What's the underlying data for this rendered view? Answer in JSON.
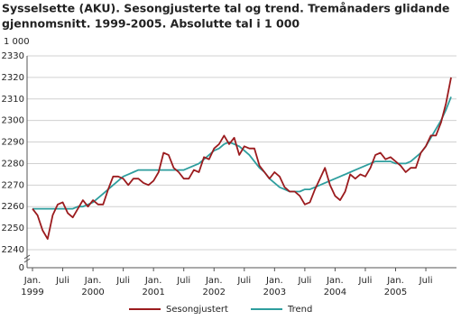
{
  "chart_data": {
    "type": "line",
    "title": [
      "Sysselsette (AKU).  Sesongjusterte tal og trend. Tremånaders glidande",
      "gjennomsnitt. 1999-2005. Absolutte tal i 1 000"
    ],
    "y_unit": "1 000",
    "y_break_label": "0",
    "categories": [
      "Jan.",
      null,
      null,
      null,
      null,
      null,
      "Juli",
      null,
      null,
      null,
      null,
      null,
      "Jan.",
      null,
      null,
      null,
      null,
      null,
      "Juli",
      null,
      null,
      null,
      null,
      null,
      "Jan.",
      null,
      null,
      null,
      null,
      null,
      "Juli",
      null,
      null,
      null,
      null,
      null,
      "Jan.",
      null,
      null,
      null,
      null,
      null,
      "Juli",
      null,
      null,
      null,
      null,
      null,
      "Jan.",
      null,
      null,
      null,
      null,
      null,
      "Juli",
      null,
      null,
      null,
      null,
      null,
      "Jan.",
      null,
      null,
      null,
      null,
      null,
      "Juli",
      null,
      null,
      null,
      null,
      null,
      "Jan.",
      null,
      null,
      null,
      null,
      null,
      "Juli",
      null,
      null,
      null,
      null,
      null
    ],
    "years": [
      "1999",
      "2000",
      "2001",
      "2002",
      "2003",
      "2004",
      "2005"
    ],
    "series": [
      {
        "name": "Sesongjustert",
        "color": "#9b1b1e",
        "values": [
          2259,
          2256,
          2249,
          2245,
          2256,
          2261,
          2262,
          2257,
          2255,
          2259,
          2263,
          2260,
          2263,
          2261,
          2261,
          2268,
          2274,
          2274,
          2273,
          2270,
          2273,
          2273,
          2271,
          2270,
          2272,
          2276,
          2285,
          2284,
          2278,
          2276,
          2273,
          2273,
          2277,
          2276,
          2283,
          2282,
          2287,
          2289,
          2293,
          2289,
          2292,
          2284,
          2288,
          2287,
          2287,
          2279,
          2276,
          2273,
          2276,
          2274,
          2269,
          2267,
          2267,
          2265,
          2261,
          2262,
          2268,
          2273,
          2278,
          2270,
          2265,
          2263,
          2267,
          2275,
          2273,
          2275,
          2274,
          2278,
          2284,
          2285,
          2282,
          2283,
          2281,
          2279,
          2276,
          2278,
          2278,
          2285,
          2288,
          2293,
          2293,
          2299,
          2308,
          2320
        ]
      },
      {
        "name": "Trend",
        "color": "#2e9e9e",
        "values": [
          2259,
          2259,
          2259,
          2259,
          2259,
          2259,
          2259,
          2259,
          2259,
          2260,
          2260,
          2261,
          2262,
          2264,
          2266,
          2268,
          2270,
          2272,
          2274,
          2275,
          2276,
          2277,
          2277,
          2277,
          2277,
          2277,
          2277,
          2277,
          2277,
          2277,
          2277,
          2278,
          2279,
          2280,
          2282,
          2284,
          2286,
          2287,
          2289,
          2290,
          2289,
          2288,
          2286,
          2284,
          2281,
          2278,
          2276,
          2273,
          2271,
          2269,
          2268,
          2267,
          2267,
          2267,
          2268,
          2268,
          2269,
          2270,
          2271,
          2272,
          2273,
          2274,
          2275,
          2276,
          2277,
          2278,
          2279,
          2280,
          2281,
          2281,
          2281,
          2281,
          2280,
          2280,
          2280,
          2281,
          2283,
          2285,
          2288,
          2292,
          2296,
          2300,
          2305,
          2311
        ]
      }
    ],
    "ylim": [
      2240,
      2330
    ],
    "yticks": [
      2240,
      2250,
      2260,
      2270,
      2280,
      2290,
      2300,
      2310,
      2320,
      2330
    ],
    "grid": true
  }
}
